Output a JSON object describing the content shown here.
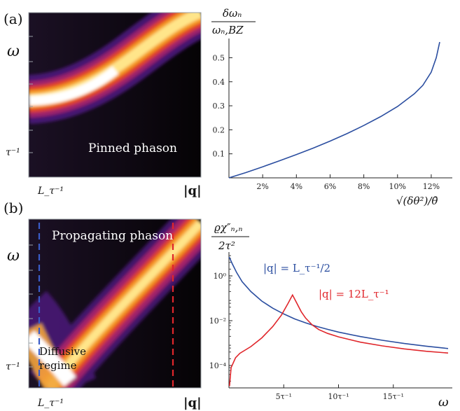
{
  "panel_labels": {
    "a": "(a)",
    "b": "(b)"
  },
  "heatmap_a": {
    "annotation": "Pinned phason",
    "ylabel": "ω",
    "ytick": "τ⁻¹",
    "xtick": "L_τ⁻¹",
    "xlabel": "|q|"
  },
  "heatmap_b": {
    "annotation_top": "Propagating phason",
    "annotation_bottom_line1": "Diffusive",
    "annotation_bottom_line2": "regime",
    "ylabel": "ω",
    "ytick": "τ⁻¹",
    "xtick": "L_τ⁻¹",
    "xlabel": "|q|"
  },
  "chart_data": [
    {
      "type": "line",
      "panel": "a-right",
      "ylabel_num": "δωₙ",
      "ylabel_den": "ωₙ,BZ",
      "xlabel": "√(δθ²)/θ̄",
      "xlim": [
        0,
        0.13
      ],
      "ylim": [
        0,
        0.58
      ],
      "xticks": [
        "2%",
        "4%",
        "6%",
        "8%",
        "10%",
        "12%"
      ],
      "xtick_values": [
        0.02,
        0.04,
        0.06,
        0.08,
        0.1,
        0.12
      ],
      "yticks": [
        "0.1",
        "0.2",
        "0.3",
        "0.4",
        "0.5"
      ],
      "ytick_values": [
        0.1,
        0.2,
        0.3,
        0.4,
        0.5
      ],
      "series": [
        {
          "color": "#2b4ea0",
          "x": [
            0,
            0.01,
            0.02,
            0.03,
            0.04,
            0.05,
            0.06,
            0.07,
            0.08,
            0.09,
            0.1,
            0.11,
            0.115,
            0.12,
            0.123,
            0.125
          ],
          "y": [
            0,
            0.022,
            0.046,
            0.071,
            0.097,
            0.124,
            0.153,
            0.184,
            0.218,
            0.255,
            0.297,
            0.35,
            0.385,
            0.44,
            0.5,
            0.565
          ]
        }
      ]
    },
    {
      "type": "line",
      "panel": "b-right",
      "ylabel_num": "ϱχ″ₙ,ₙ",
      "ylabel_den": "2τ²",
      "xlabel": "ω",
      "yscale": "log",
      "xlim": [
        0,
        20
      ],
      "ylim": [
        1e-05,
        10
      ],
      "xticks": [
        "5τ⁻¹",
        "10τ⁻¹",
        "15τ⁻¹"
      ],
      "xtick_values": [
        5,
        10,
        15
      ],
      "yticks": [
        "10⁰",
        "10⁻²",
        "10⁻⁴"
      ],
      "ytick_values": [
        1,
        0.01,
        0.0001
      ],
      "series": [
        {
          "name": "|q| = L_τ⁻¹/2",
          "color": "#2b4ea0",
          "x": [
            0.02,
            0.3,
            0.7,
            1.2,
            2,
            3,
            4,
            5,
            6,
            7,
            8,
            9,
            10,
            12,
            14,
            16,
            18,
            20
          ],
          "y": [
            7,
            3.5,
            1.4,
            0.55,
            0.2,
            0.075,
            0.036,
            0.02,
            0.012,
            0.008,
            0.0056,
            0.0041,
            0.0031,
            0.00195,
            0.00133,
            0.00096,
            0.00073,
            0.00057
          ]
        },
        {
          "name": "|q| = 12L_τ⁻¹",
          "color": "#e0262b",
          "x": [
            0.05,
            0.2,
            0.6,
            1,
            2,
            3,
            4,
            4.8,
            5.4,
            5.8,
            6.2,
            6.6,
            7,
            7.6,
            8.2,
            9,
            10,
            12,
            14,
            16,
            18,
            20
          ],
          "y": [
            1.2e-05,
            8e-05,
            0.00022,
            0.00035,
            0.0007,
            0.0017,
            0.0055,
            0.018,
            0.06,
            0.14,
            0.06,
            0.025,
            0.013,
            0.0065,
            0.004,
            0.0027,
            0.0019,
            0.0011,
            0.00075,
            0.00055,
            0.00043,
            0.00036
          ]
        }
      ]
    }
  ]
}
